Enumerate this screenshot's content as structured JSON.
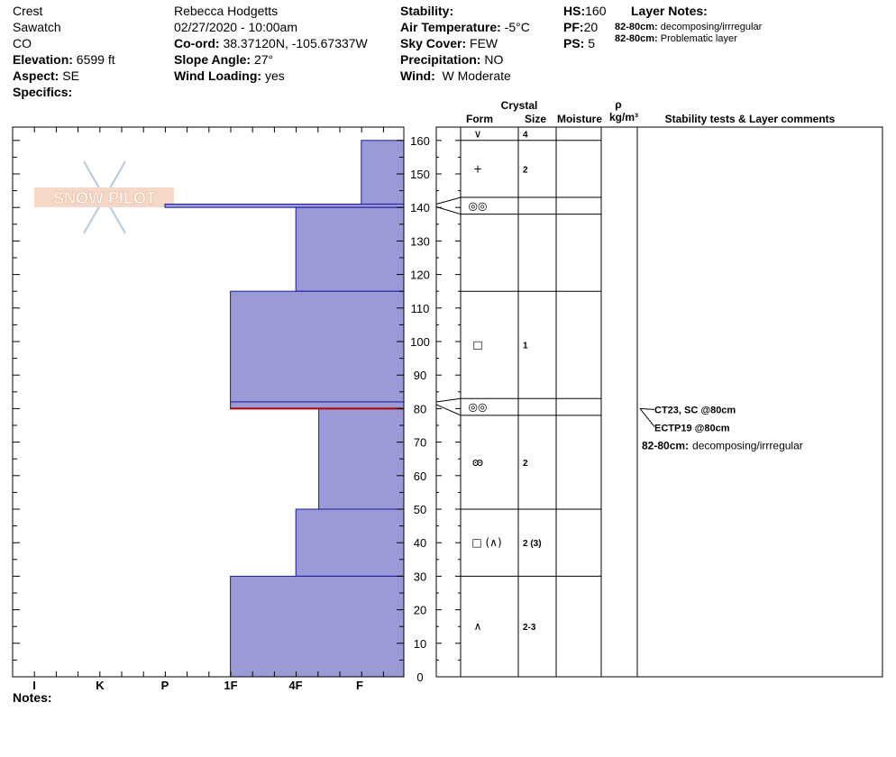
{
  "header": {
    "location": "Crest",
    "range": "Sawatch",
    "state": "CO",
    "elevation_label": "Elevation:",
    "elevation": "6599 ft",
    "aspect_label": "Aspect:",
    "aspect": "SE",
    "specifics_label": "Specifics:",
    "observer": "Rebecca Hodgetts",
    "datetime": "02/27/2020 - 10:00am",
    "coord_label": "Co-ord:",
    "coord": "38.37120N, -105.67337W",
    "slope_label": "Slope Angle:",
    "slope": "27°",
    "wind_loading_label": "Wind Loading:",
    "wind_loading": "yes",
    "stability_label": "Stability:",
    "air_temp_label": "Air Temperature:",
    "air_temp": "-5°C",
    "sky_label": "Sky Cover:",
    "sky": "FEW",
    "precip_label": "Precipitation:",
    "precip": "NO",
    "wind_label": "Wind:",
    "wind": "W Moderate",
    "hs_label": "HS:",
    "hs": "160",
    "pf_label": "PF:",
    "pf": "20",
    "ps_label": "PS:",
    "ps": "5",
    "layer_notes_label": "Layer Notes:",
    "layer_notes": [
      {
        "range": "82-80cm:",
        "text": "decomposing/irrregular"
      },
      {
        "range": "82-80cm:",
        "text": "Problematic layer"
      }
    ]
  },
  "logo_text": "SNOW PILOT",
  "notes_label": "Notes:",
  "columns": {
    "crystal": "Crystal",
    "form": "Form",
    "size": "Size",
    "moisture": "Moisture",
    "rho": "ρ",
    "density_unit": "kg/m³",
    "stability": "Stability tests & Layer comments"
  },
  "comments": [
    {
      "text": "CT23, SC @80cm",
      "depth": 80
    },
    {
      "text": "ECTP19 @80cm",
      "depth": 80
    }
  ],
  "layer_comment": {
    "range": "82-80cm:",
    "text": "decomposing/irrregular"
  },
  "colors": {
    "hardness_fill": "#9a9ad6",
    "hardness_stroke": "#1a1aa0",
    "weak_layer": "#b00000"
  },
  "chart_data": {
    "type": "bar",
    "orientation": "horizontal",
    "ylabel": "",
    "xlabel": "",
    "ylim": [
      0,
      164
    ],
    "y_ticks": [
      0,
      10,
      20,
      30,
      40,
      50,
      60,
      70,
      80,
      90,
      100,
      110,
      120,
      130,
      140,
      150,
      160
    ],
    "hardness_categories": [
      "I",
      "K",
      "P",
      "1F",
      "4F",
      "F"
    ],
    "layers": [
      {
        "top": 160,
        "bottom": 141,
        "hardness": "F",
        "hardness_value": 0.65,
        "form": "∨",
        "size": "4",
        "form_top": 164
      },
      {
        "top": 141,
        "bottom": 140,
        "hardness": "P+",
        "hardness_value": 3.65,
        "form": "+",
        "size": "2"
      },
      {
        "top": 140,
        "bottom": 115,
        "hardness": "4F",
        "hardness_value": 1.65,
        "form": "◎◎",
        "size": ""
      },
      {
        "top": 115,
        "bottom": 82,
        "hardness": "1F",
        "hardness_value": 2.65,
        "form": "□",
        "size": "1"
      },
      {
        "top": 82,
        "bottom": 80,
        "hardness": "1F",
        "hardness_value": 2.65,
        "form": "◎◎",
        "size": ""
      },
      {
        "top": 80,
        "bottom": 50,
        "hardness": "4F-",
        "hardness_value": 1.3,
        "form": "ꙭ",
        "size": "2"
      },
      {
        "top": 50,
        "bottom": 30,
        "hardness": "4F",
        "hardness_value": 1.65,
        "form": "□ (∧)",
        "size": "2 (3)"
      },
      {
        "top": 30,
        "bottom": 0,
        "hardness": "1F",
        "hardness_value": 2.65,
        "form": "∧",
        "size": "2-3"
      }
    ],
    "crystal_rows": [
      {
        "form": "∨",
        "size": "4",
        "top": 164,
        "bottom": 160
      },
      {
        "form": "+",
        "size": "2",
        "top": 160,
        "bottom": 143
      },
      {
        "form": "◎◎",
        "size": "",
        "top": 143,
        "bottom": 138
      },
      {
        "form": "",
        "size": "",
        "top": 138,
        "bottom": 115
      },
      {
        "form": "□",
        "size": "1",
        "top": 115,
        "bottom": 83
      },
      {
        "form": "◎◎",
        "size": "",
        "top": 83,
        "bottom": 78
      },
      {
        "form": "ꙭ",
        "size": "2",
        "top": 78,
        "bottom": 50
      },
      {
        "form": "□ (∧)",
        "size": "2 (3)",
        "top": 50,
        "bottom": 30
      },
      {
        "form": "∧",
        "size": "2-3",
        "top": 30,
        "bottom": 0
      }
    ],
    "weak_layer_depth": 80
  }
}
